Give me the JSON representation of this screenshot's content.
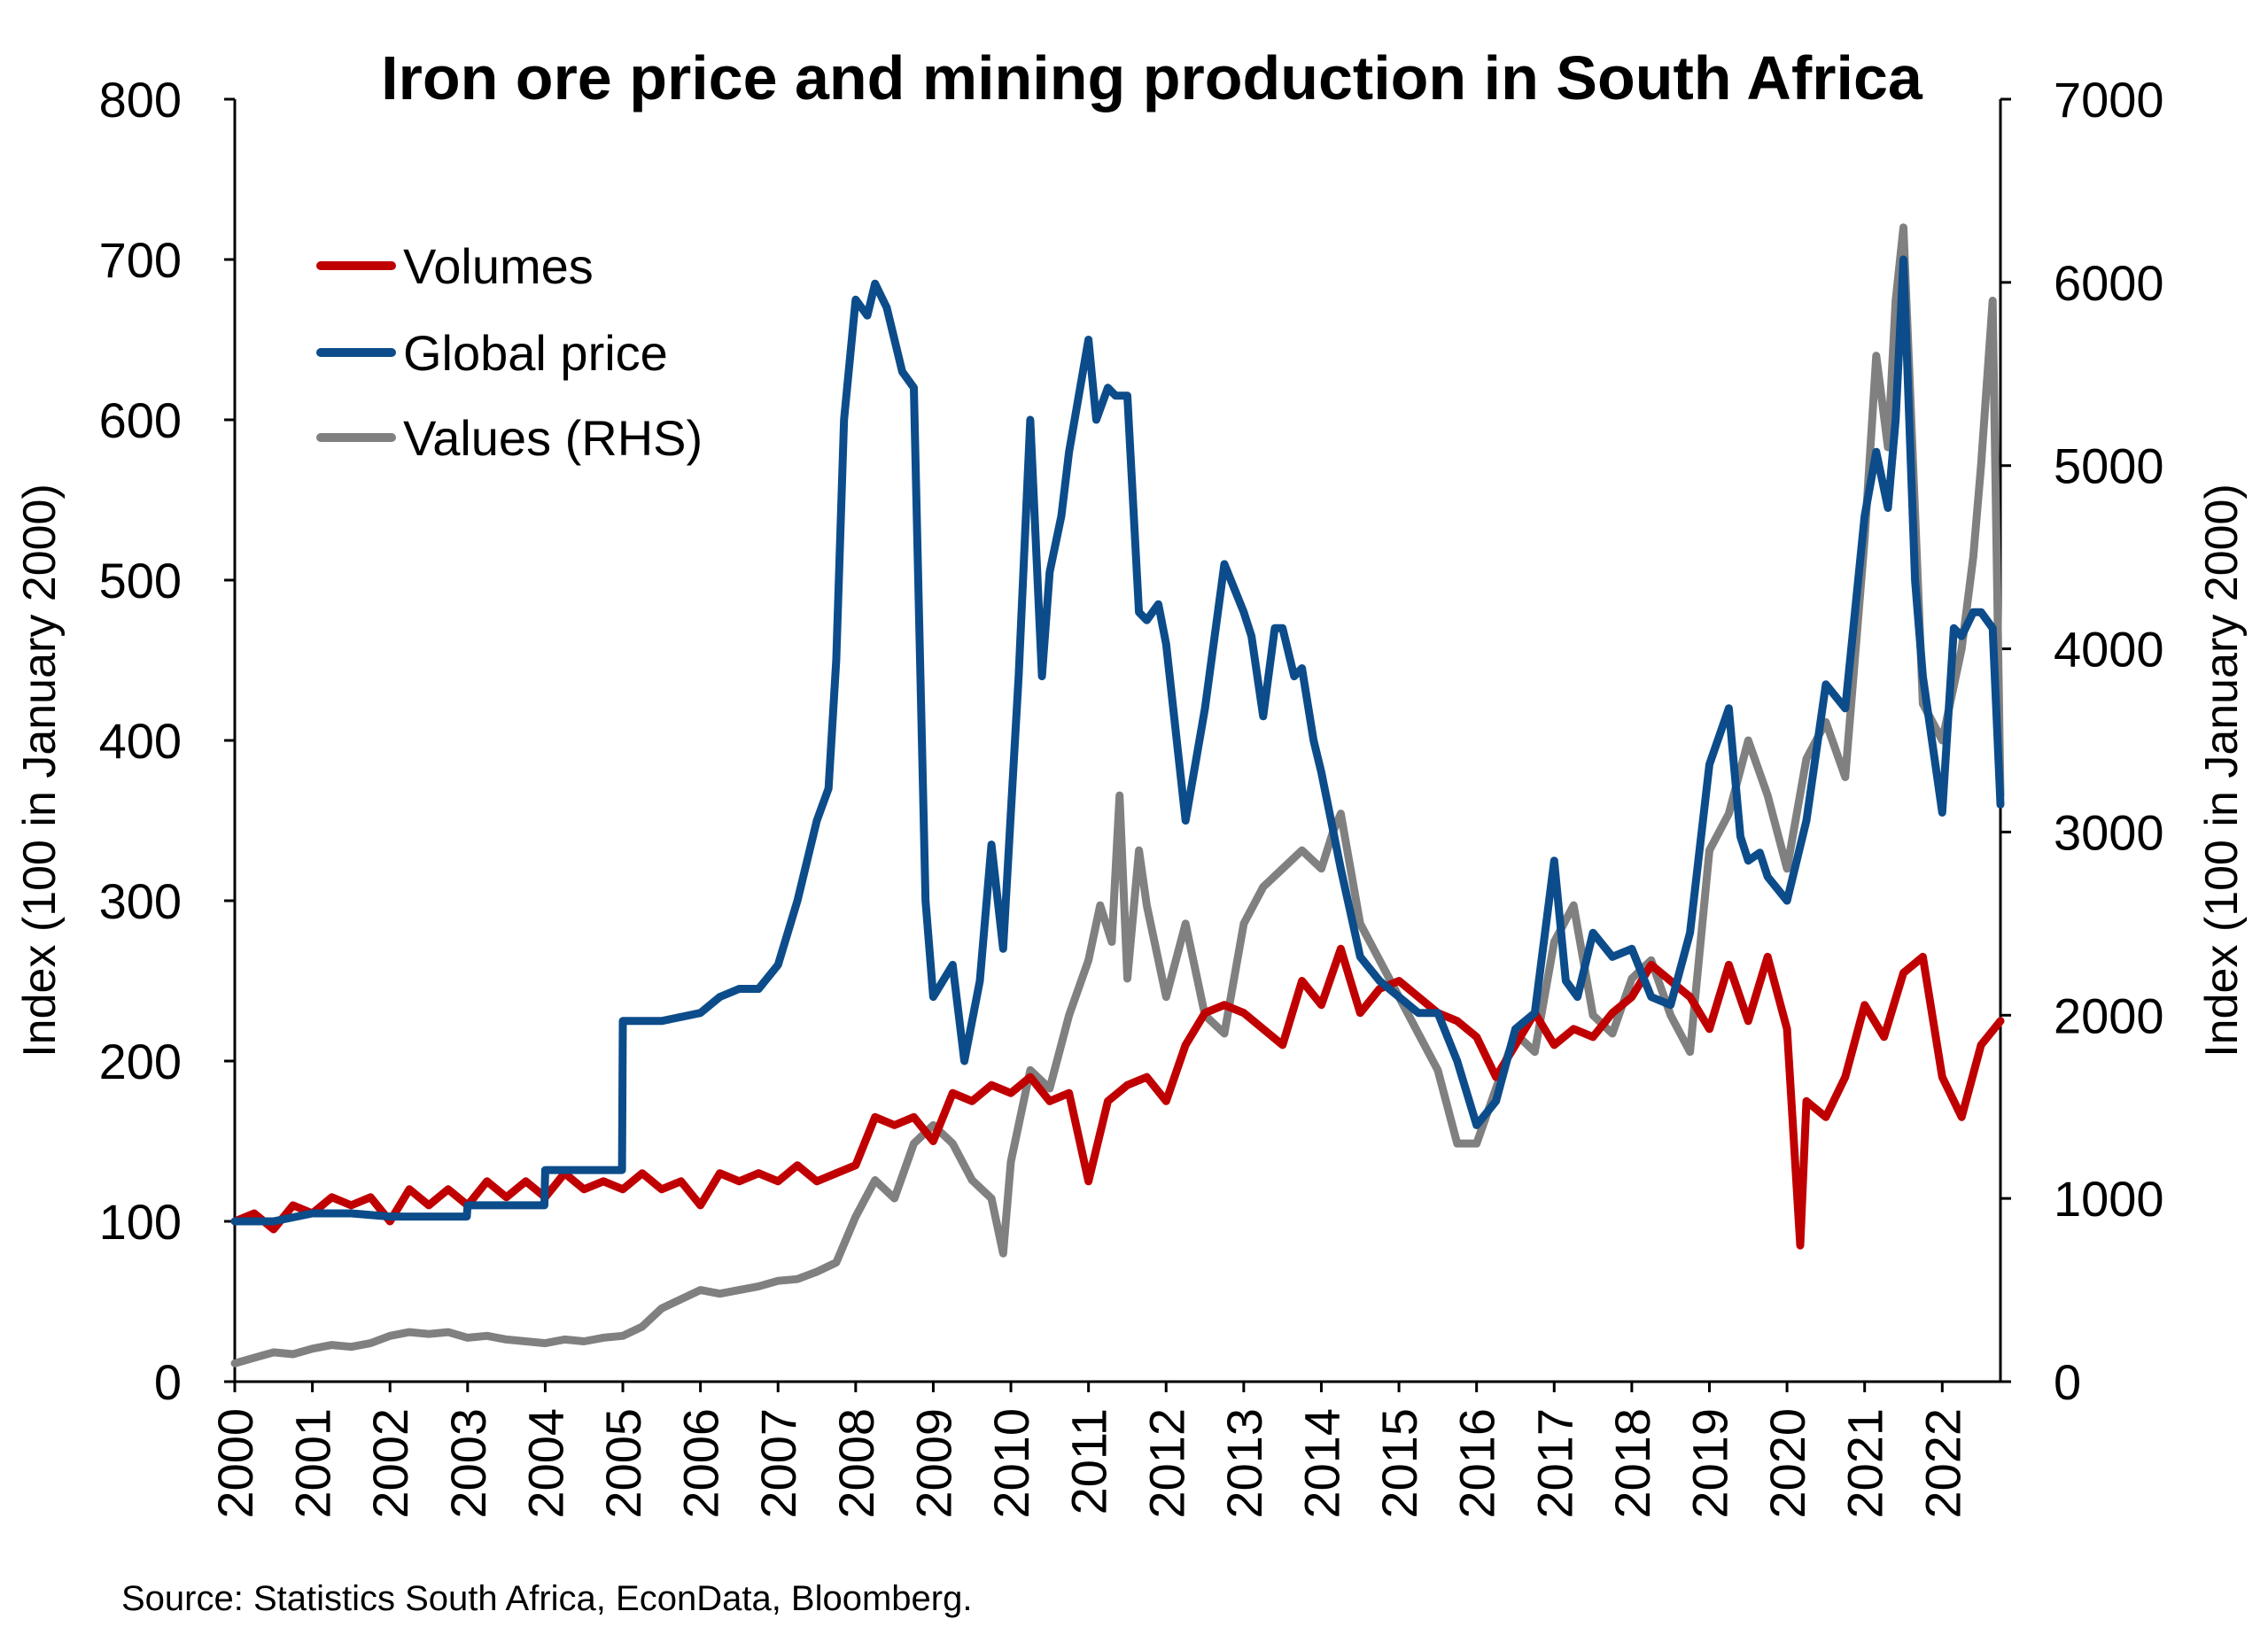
{
  "chart_data": {
    "type": "line",
    "title": "Iron ore price and mining production in South Africa",
    "ylabel_left": "Index (100 in January 2000)",
    "ylabel_right": "Index (100 in January 2000)",
    "ylim_left": [
      0,
      800
    ],
    "ylim_right": [
      0,
      7000
    ],
    "yticks_left": [
      "0",
      "100",
      "200",
      "300",
      "400",
      "500",
      "600",
      "700",
      "800"
    ],
    "yticks_right": [
      "0",
      "1000",
      "2000",
      "3000",
      "4000",
      "5000",
      "6000",
      "7000"
    ],
    "xticks": [
      "2000",
      "2001",
      "2002",
      "2003",
      "2004",
      "2005",
      "2006",
      "2007",
      "2008",
      "2009",
      "2010",
      "2011",
      "2012",
      "2013",
      "2014",
      "2015",
      "2016",
      "2017",
      "2018",
      "2019",
      "2020",
      "2021",
      "2022"
    ],
    "xlim": [
      2000.0,
      2022.75
    ],
    "grid": false,
    "legend_position": "top-left",
    "source": "Source: Statistics South Africa, EconData, Bloomberg.",
    "series": [
      {
        "name": "Volumes",
        "axis": "left",
        "color": "#c00000",
        "x": [
          2000.0,
          2000.25,
          2000.5,
          2000.75,
          2001.0,
          2001.25,
          2001.5,
          2001.75,
          2002.0,
          2002.25,
          2002.5,
          2002.75,
          2003.0,
          2003.25,
          2003.5,
          2003.75,
          2004.0,
          2004.25,
          2004.5,
          2004.75,
          2005.0,
          2005.25,
          2005.5,
          2005.75,
          2006.0,
          2006.25,
          2006.5,
          2006.75,
          2007.0,
          2007.25,
          2007.5,
          2007.75,
          2008.0,
          2008.25,
          2008.5,
          2008.75,
          2009.0,
          2009.25,
          2009.5,
          2009.75,
          2010.0,
          2010.25,
          2010.5,
          2010.75,
          2011.0,
          2011.25,
          2011.5,
          2011.75,
          2012.0,
          2012.25,
          2012.5,
          2012.75,
          2013.0,
          2013.25,
          2013.5,
          2013.75,
          2014.0,
          2014.25,
          2014.5,
          2014.75,
          2015.0,
          2015.25,
          2015.5,
          2015.75,
          2016.0,
          2016.25,
          2016.5,
          2016.75,
          2017.0,
          2017.25,
          2017.5,
          2017.75,
          2018.0,
          2018.25,
          2018.5,
          2018.75,
          2019.0,
          2019.25,
          2019.5,
          2019.75,
          2020.0,
          2020.17,
          2020.25,
          2020.5,
          2020.75,
          2021.0,
          2021.25,
          2021.5,
          2021.75,
          2022.0,
          2022.25,
          2022.5,
          2022.75
        ],
        "values": [
          100,
          105,
          95,
          110,
          105,
          115,
          110,
          115,
          100,
          120,
          110,
          120,
          110,
          125,
          115,
          125,
          115,
          130,
          120,
          125,
          120,
          130,
          120,
          125,
          110,
          130,
          125,
          130,
          125,
          135,
          125,
          130,
          135,
          165,
          160,
          165,
          150,
          180,
          175,
          185,
          180,
          190,
          175,
          180,
          125,
          175,
          185,
          190,
          175,
          210,
          230,
          235,
          230,
          220,
          210,
          250,
          235,
          270,
          230,
          245,
          250,
          240,
          230,
          225,
          215,
          190,
          210,
          230,
          210,
          220,
          215,
          230,
          240,
          260,
          250,
          240,
          220,
          260,
          225,
          265,
          220,
          85,
          175,
          165,
          190,
          235,
          215,
          255,
          265,
          190,
          165,
          210,
          225
        ]
      },
      {
        "name": "Global price",
        "axis": "left",
        "color": "#0c4c8a",
        "x": [
          2000.0,
          2000.5,
          2001.0,
          2001.5,
          2002.0,
          2002.5,
          2002.99,
          2003.0,
          2003.5,
          2003.99,
          2004.0,
          2004.5,
          2004.99,
          2005.0,
          2005.5,
          2006.0,
          2006.25,
          2006.5,
          2006.75,
          2007.0,
          2007.25,
          2007.5,
          2007.65,
          2007.75,
          2007.85,
          2008.0,
          2008.15,
          2008.25,
          2008.4,
          2008.6,
          2008.75,
          2008.9,
          2009.0,
          2009.25,
          2009.4,
          2009.6,
          2009.75,
          2009.9,
          2010.0,
          2010.1,
          2010.25,
          2010.4,
          2010.5,
          2010.65,
          2010.75,
          2011.0,
          2011.1,
          2011.25,
          2011.35,
          2011.5,
          2011.65,
          2011.75,
          2011.9,
          2012.0,
          2012.25,
          2012.5,
          2012.75,
          2013.0,
          2013.1,
          2013.25,
          2013.4,
          2013.5,
          2013.65,
          2013.75,
          2013.9,
          2014.0,
          2014.25,
          2014.5,
          2014.75,
          2015.0,
          2015.25,
          2015.5,
          2015.75,
          2016.0,
          2016.25,
          2016.5,
          2016.75,
          2017.0,
          2017.15,
          2017.3,
          2017.5,
          2017.75,
          2018.0,
          2018.25,
          2018.5,
          2018.75,
          2019.0,
          2019.25,
          2019.4,
          2019.5,
          2019.65,
          2019.75,
          2020.0,
          2020.25,
          2020.5,
          2020.75,
          2021.0,
          2021.15,
          2021.3,
          2021.4,
          2021.5,
          2021.65,
          2021.75,
          2022.0,
          2022.15,
          2022.25,
          2022.4,
          2022.5,
          2022.65,
          2022.75
        ],
        "values": [
          100,
          100,
          105,
          105,
          103,
          103,
          103,
          110,
          110,
          110,
          132,
          132,
          132,
          225,
          225,
          230,
          240,
          245,
          245,
          260,
          300,
          350,
          370,
          450,
          600,
          675,
          665,
          685,
          670,
          630,
          620,
          300,
          240,
          260,
          200,
          250,
          335,
          270,
          355,
          440,
          600,
          440,
          505,
          540,
          580,
          650,
          600,
          620,
          615,
          615,
          480,
          475,
          485,
          460,
          350,
          420,
          510,
          480,
          465,
          415,
          470,
          470,
          440,
          445,
          400,
          380,
          320,
          265,
          250,
          240,
          230,
          230,
          200,
          160,
          175,
          220,
          230,
          325,
          250,
          240,
          280,
          265,
          270,
          240,
          235,
          280,
          385,
          420,
          340,
          325,
          330,
          315,
          300,
          350,
          435,
          420,
          540,
          580,
          545,
          600,
          700,
          500,
          440,
          355,
          470,
          465,
          480,
          480,
          470,
          360
        ]
      },
      {
        "name": "Values (RHS)",
        "axis": "right",
        "color": "#808080",
        "x": [
          2000.0,
          2000.25,
          2000.5,
          2000.75,
          2001.0,
          2001.25,
          2001.5,
          2001.75,
          2002.0,
          2002.25,
          2002.5,
          2002.75,
          2003.0,
          2003.25,
          2003.5,
          2003.75,
          2004.0,
          2004.25,
          2004.5,
          2004.75,
          2005.0,
          2005.25,
          2005.5,
          2005.75,
          2006.0,
          2006.25,
          2006.5,
          2006.75,
          2007.0,
          2007.25,
          2007.5,
          2007.75,
          2008.0,
          2008.25,
          2008.5,
          2008.75,
          2009.0,
          2009.25,
          2009.5,
          2009.75,
          2009.9,
          2010.0,
          2010.25,
          2010.5,
          2010.75,
          2011.0,
          2011.15,
          2011.3,
          2011.4,
          2011.5,
          2011.65,
          2011.75,
          2012.0,
          2012.25,
          2012.5,
          2012.75,
          2013.0,
          2013.25,
          2013.5,
          2013.75,
          2014.0,
          2014.15,
          2014.25,
          2014.5,
          2014.75,
          2015.0,
          2015.25,
          2015.5,
          2015.75,
          2016.0,
          2016.25,
          2016.5,
          2016.75,
          2017.0,
          2017.25,
          2017.5,
          2017.75,
          2018.0,
          2018.25,
          2018.5,
          2018.75,
          2019.0,
          2019.25,
          2019.5,
          2019.75,
          2020.0,
          2020.25,
          2020.5,
          2020.75,
          2021.0,
          2021.15,
          2021.3,
          2021.4,
          2021.5,
          2021.75,
          2022.0,
          2022.25,
          2022.4,
          2022.5,
          2022.65,
          2022.75
        ],
        "values": [
          100,
          130,
          160,
          150,
          180,
          200,
          190,
          210,
          250,
          270,
          260,
          270,
          240,
          250,
          230,
          220,
          210,
          230,
          220,
          240,
          250,
          300,
          400,
          450,
          500,
          480,
          500,
          520,
          550,
          560,
          600,
          650,
          900,
          1100,
          1000,
          1300,
          1400,
          1300,
          1100,
          1000,
          700,
          1200,
          1700,
          1600,
          2000,
          2300,
          2600,
          2400,
          3200,
          2200,
          2900,
          2600,
          2100,
          2500,
          2000,
          1900,
          2500,
          2700,
          2800,
          2900,
          2800,
          3000,
          3100,
          2500,
          2300,
          2100,
          1900,
          1700,
          1300,
          1300,
          1600,
          1900,
          1800,
          2400,
          2600,
          2000,
          1900,
          2200,
          2300,
          2000,
          1800,
          2900,
          3100,
          3500,
          3200,
          2800,
          3400,
          3600,
          3300,
          4600,
          5600,
          5100,
          5900,
          6300,
          3700,
          3500,
          4000,
          4500,
          5000,
          5900,
          3200
        ]
      }
    ]
  }
}
